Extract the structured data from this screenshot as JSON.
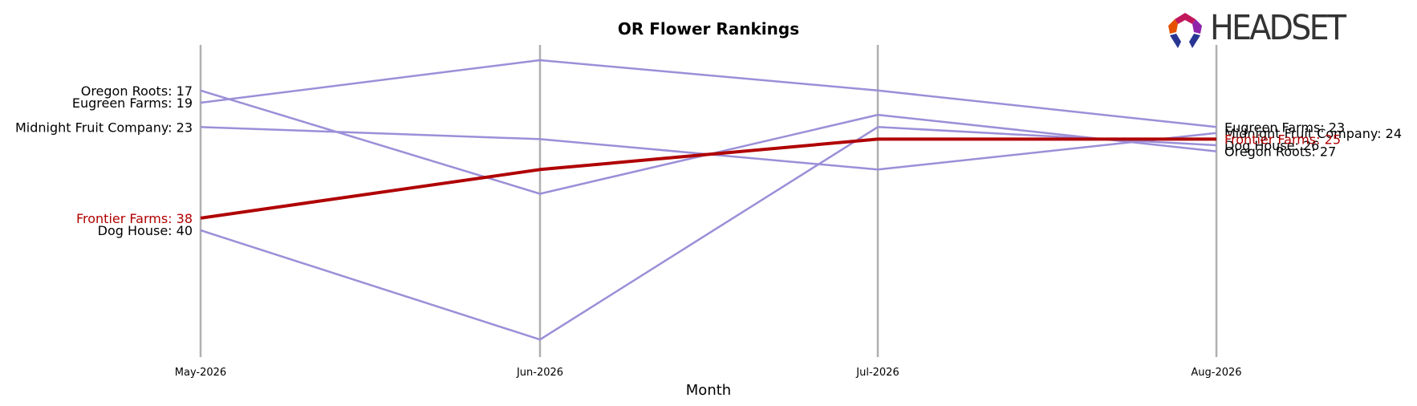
{
  "chart_data": {
    "type": "line",
    "title": "OR Flower Rankings",
    "xlabel": "Month",
    "ylabel": "",
    "categories": [
      "May-2026",
      "Jun-2026",
      "Jul-2026",
      "Aug-2026"
    ],
    "y_reversed": true,
    "ylim": [
      10,
      50
    ],
    "grid": "vertical lines at each month",
    "highlight_color": "#b00000",
    "series_color": "#9b8fd8",
    "series": [
      {
        "name": "Oregon Roots",
        "values": [
          17,
          34,
          21,
          27
        ],
        "highlight": false,
        "start_label": "Oregon Roots: 17",
        "end_label": "Oregon Roots: 27"
      },
      {
        "name": "Eugreen Farms",
        "values": [
          19,
          12,
          17,
          23
        ],
        "highlight": false,
        "start_label": "Eugreen Farms: 19",
        "end_label": "Eugreen Farms: 23"
      },
      {
        "name": "Midnight Fruit Company",
        "values": [
          23,
          25,
          30,
          24
        ],
        "highlight": false,
        "start_label": "Midnight Fruit Company: 23",
        "end_label": "Midnight Fruit Company: 24"
      },
      {
        "name": "Dog House",
        "values": [
          40,
          58,
          23,
          26
        ],
        "highlight": false,
        "start_label": "Dog House: 40",
        "end_label": "Dog House: 26"
      },
      {
        "name": "Frontier Farms",
        "values": [
          38,
          30,
          25,
          25
        ],
        "highlight": true,
        "start_label": "Frontier Farms: 38",
        "end_label": "Frontier Farms: 25"
      }
    ]
  },
  "logo": {
    "text": "HEADSET"
  }
}
